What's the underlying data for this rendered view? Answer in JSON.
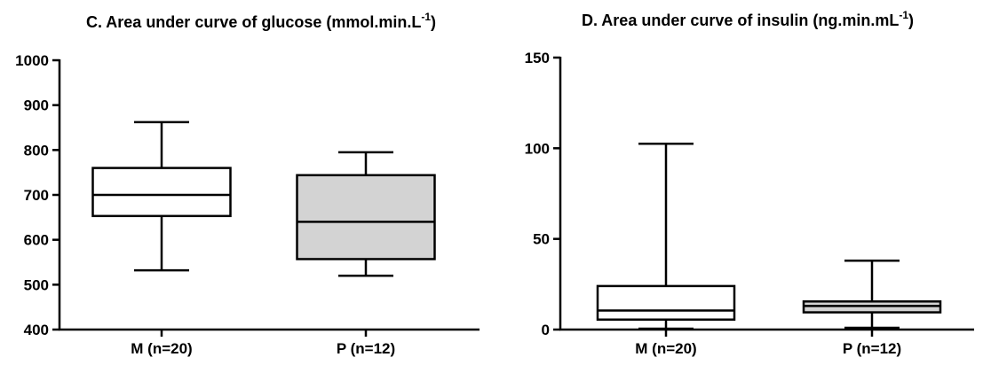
{
  "chart_data": [
    {
      "type": "box",
      "title": "C. Area under curve of glucose (mmol.min.L",
      "title_sup": "-1",
      "title_end": ")",
      "ylim": [
        400,
        1000
      ],
      "yticks": [
        "400",
        "500",
        "600",
        "700",
        "800",
        "900",
        "1000"
      ],
      "categories": [
        "M (n=20)",
        "P (n=12)"
      ],
      "boxes": [
        {
          "min": 532,
          "q1": 653,
          "median": 700,
          "q3": 760,
          "max": 862,
          "fill": "#ffffff"
        },
        {
          "min": 520,
          "q1": 557,
          "median": 640,
          "q3": 744,
          "max": 795,
          "fill": "#d3d3d3"
        }
      ]
    },
    {
      "type": "box",
      "title": "D. Area under curve of insulin (ng.min.mL",
      "title_sup": "-1",
      "title_end": ")",
      "ylim": [
        0,
        150
      ],
      "yticks": [
        "0",
        "50",
        "100",
        "150"
      ],
      "categories": [
        "M (n=20)",
        "P (n=12)"
      ],
      "boxes": [
        {
          "min": 0.5,
          "q1": 5.5,
          "median": 10.5,
          "q3": 24,
          "max": 102.5,
          "fill": "#ffffff"
        },
        {
          "min": 1,
          "q1": 9.5,
          "median": 13,
          "q3": 15.5,
          "max": 38,
          "fill": "#d3d3d3"
        }
      ]
    }
  ]
}
